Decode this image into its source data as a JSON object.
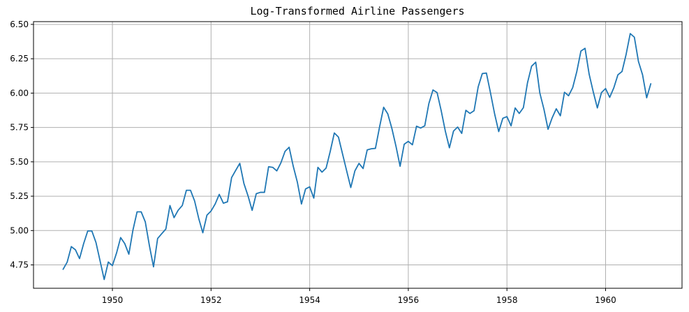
{
  "chart_data": {
    "type": "line",
    "title": "Log-Transformed Airline Passengers",
    "xlabel": "",
    "ylabel": "",
    "x_start": 1949,
    "x_step_months": 1,
    "x_ticks": [
      {
        "value": 1950,
        "label": "1950"
      },
      {
        "value": 1952,
        "label": "1952"
      },
      {
        "value": 1954,
        "label": "1954"
      },
      {
        "value": 1956,
        "label": "1956"
      },
      {
        "value": 1958,
        "label": "1958"
      },
      {
        "value": 1960,
        "label": "1960"
      }
    ],
    "y_ticks": [
      {
        "value": 4.75,
        "label": "4.75"
      },
      {
        "value": 5.0,
        "label": "5.00"
      },
      {
        "value": 5.25,
        "label": "5.25"
      },
      {
        "value": 5.5,
        "label": "5.50"
      },
      {
        "value": 5.75,
        "label": "5.75"
      },
      {
        "value": 6.0,
        "label": "6.00"
      },
      {
        "value": 6.25,
        "label": "6.25"
      },
      {
        "value": 6.5,
        "label": "6.50"
      }
    ],
    "xlim": [
      1948.4,
      1961.55
    ],
    "ylim": [
      4.58,
      6.52
    ],
    "grid": true,
    "series_color": "#1f77b4",
    "values": [
      4.718,
      4.771,
      4.883,
      4.86,
      4.796,
      4.905,
      4.997,
      4.997,
      4.913,
      4.779,
      4.644,
      4.771,
      4.745,
      4.836,
      4.949,
      4.905,
      4.828,
      5.004,
      5.136,
      5.136,
      5.063,
      4.89,
      4.736,
      4.942,
      4.977,
      5.011,
      5.182,
      5.094,
      5.148,
      5.182,
      5.293,
      5.293,
      5.215,
      5.088,
      4.984,
      5.112,
      5.142,
      5.193,
      5.263,
      5.199,
      5.209,
      5.385,
      5.438,
      5.489,
      5.342,
      5.252,
      5.147,
      5.268,
      5.278,
      5.278,
      5.464,
      5.46,
      5.434,
      5.493,
      5.576,
      5.606,
      5.468,
      5.352,
      5.193,
      5.303,
      5.318,
      5.236,
      5.46,
      5.425,
      5.455,
      5.576,
      5.71,
      5.68,
      5.557,
      5.434,
      5.313,
      5.434,
      5.489,
      5.451,
      5.587,
      5.595,
      5.598,
      5.753,
      5.897,
      5.849,
      5.743,
      5.613,
      5.468,
      5.628,
      5.649,
      5.624,
      5.759,
      5.746,
      5.762,
      5.924,
      6.023,
      6.004,
      5.872,
      5.724,
      5.602,
      5.724,
      5.753,
      5.707,
      5.875,
      5.852,
      5.872,
      6.045,
      6.142,
      6.146,
      6.001,
      5.849,
      5.72,
      5.817,
      5.829,
      5.762,
      5.892,
      5.852,
      5.894,
      6.075,
      6.196,
      6.225,
      6.001,
      5.883,
      5.737,
      5.82,
      5.886,
      5.835,
      6.006,
      5.981,
      6.04,
      6.157,
      6.306,
      6.326,
      6.138,
      6.009,
      5.892,
      6.004,
      6.033,
      5.969,
      6.038,
      6.133,
      6.157,
      6.282,
      6.433,
      6.407,
      6.23,
      6.133,
      5.966,
      6.068
    ]
  }
}
